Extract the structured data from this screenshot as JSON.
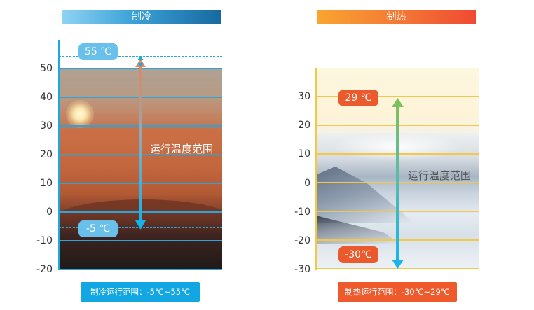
{
  "cooling": {
    "title": "制冷",
    "ticks": [
      "50",
      "40",
      "30",
      "20",
      "10",
      "0",
      "-10",
      "-20"
    ],
    "max_label": "55 ℃",
    "min_label": "-5 ℃",
    "range_label": "运行温度范围",
    "footer": "制冷运行范围：-5℃~55℃",
    "colors": {
      "accent": "#1aa9e0",
      "grid": "#2aa5dc",
      "pill": "#69c0ea"
    }
  },
  "heating": {
    "title": "制热",
    "ticks": [
      "30",
      "20",
      "10",
      "0",
      "-10",
      "-20",
      "-30"
    ],
    "max_label": "29 ℃",
    "min_label": "-30℃",
    "range_label": "运行温度范围",
    "footer": "制热运行范围：-30℃~29℃",
    "colors": {
      "accent": "#ef5a2c",
      "grid": "#f2c84b",
      "pill": "#ea5a2c"
    }
  }
}
